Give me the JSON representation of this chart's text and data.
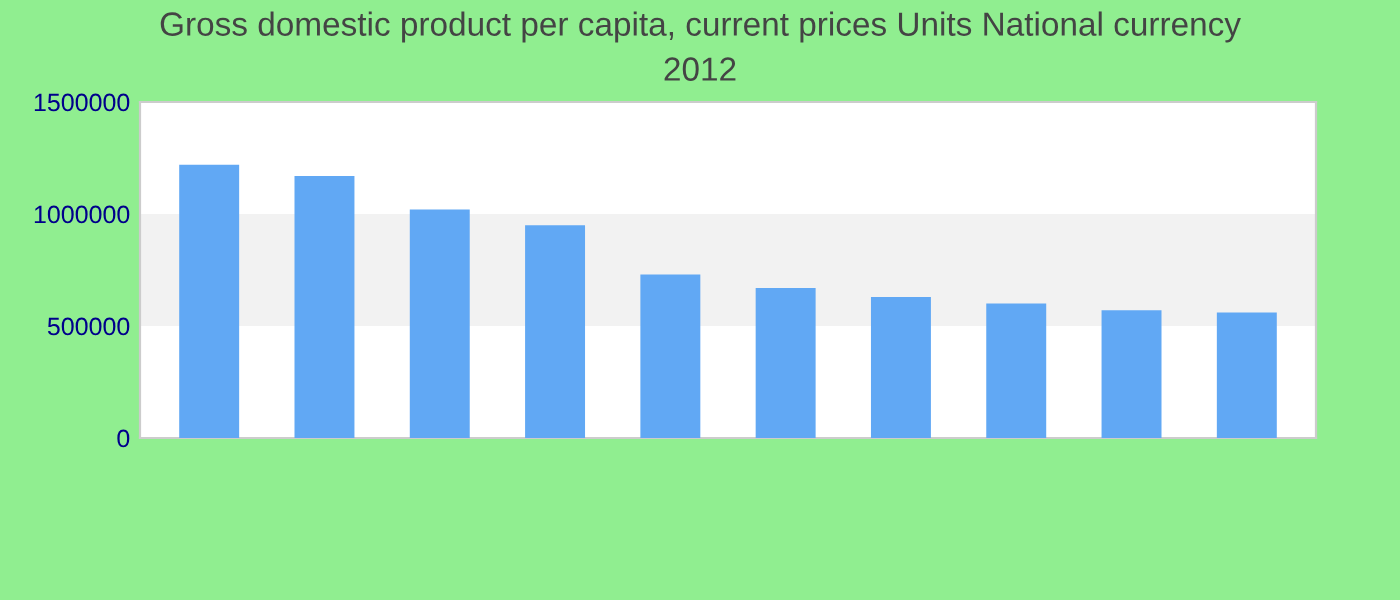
{
  "chart_data": {
    "type": "bar",
    "title": "Gross domestic product per capita, current prices Units National currency",
    "subtitle": "2012",
    "categories": [
      null,
      null,
      null,
      null,
      null,
      null,
      null,
      null,
      null,
      null
    ],
    "values": [
      1220000,
      1170000,
      1020000,
      950000,
      730000,
      670000,
      630000,
      600000,
      570000,
      560000
    ],
    "color": "#61a8f4",
    "ylim": [
      0,
      1500000
    ],
    "yticks": [
      0,
      500000,
      1000000,
      1500000
    ],
    "bands": [
      {
        "axis": "y",
        "from": 500000,
        "to": 1000000,
        "color": "#f2f2f2"
      }
    ]
  }
}
